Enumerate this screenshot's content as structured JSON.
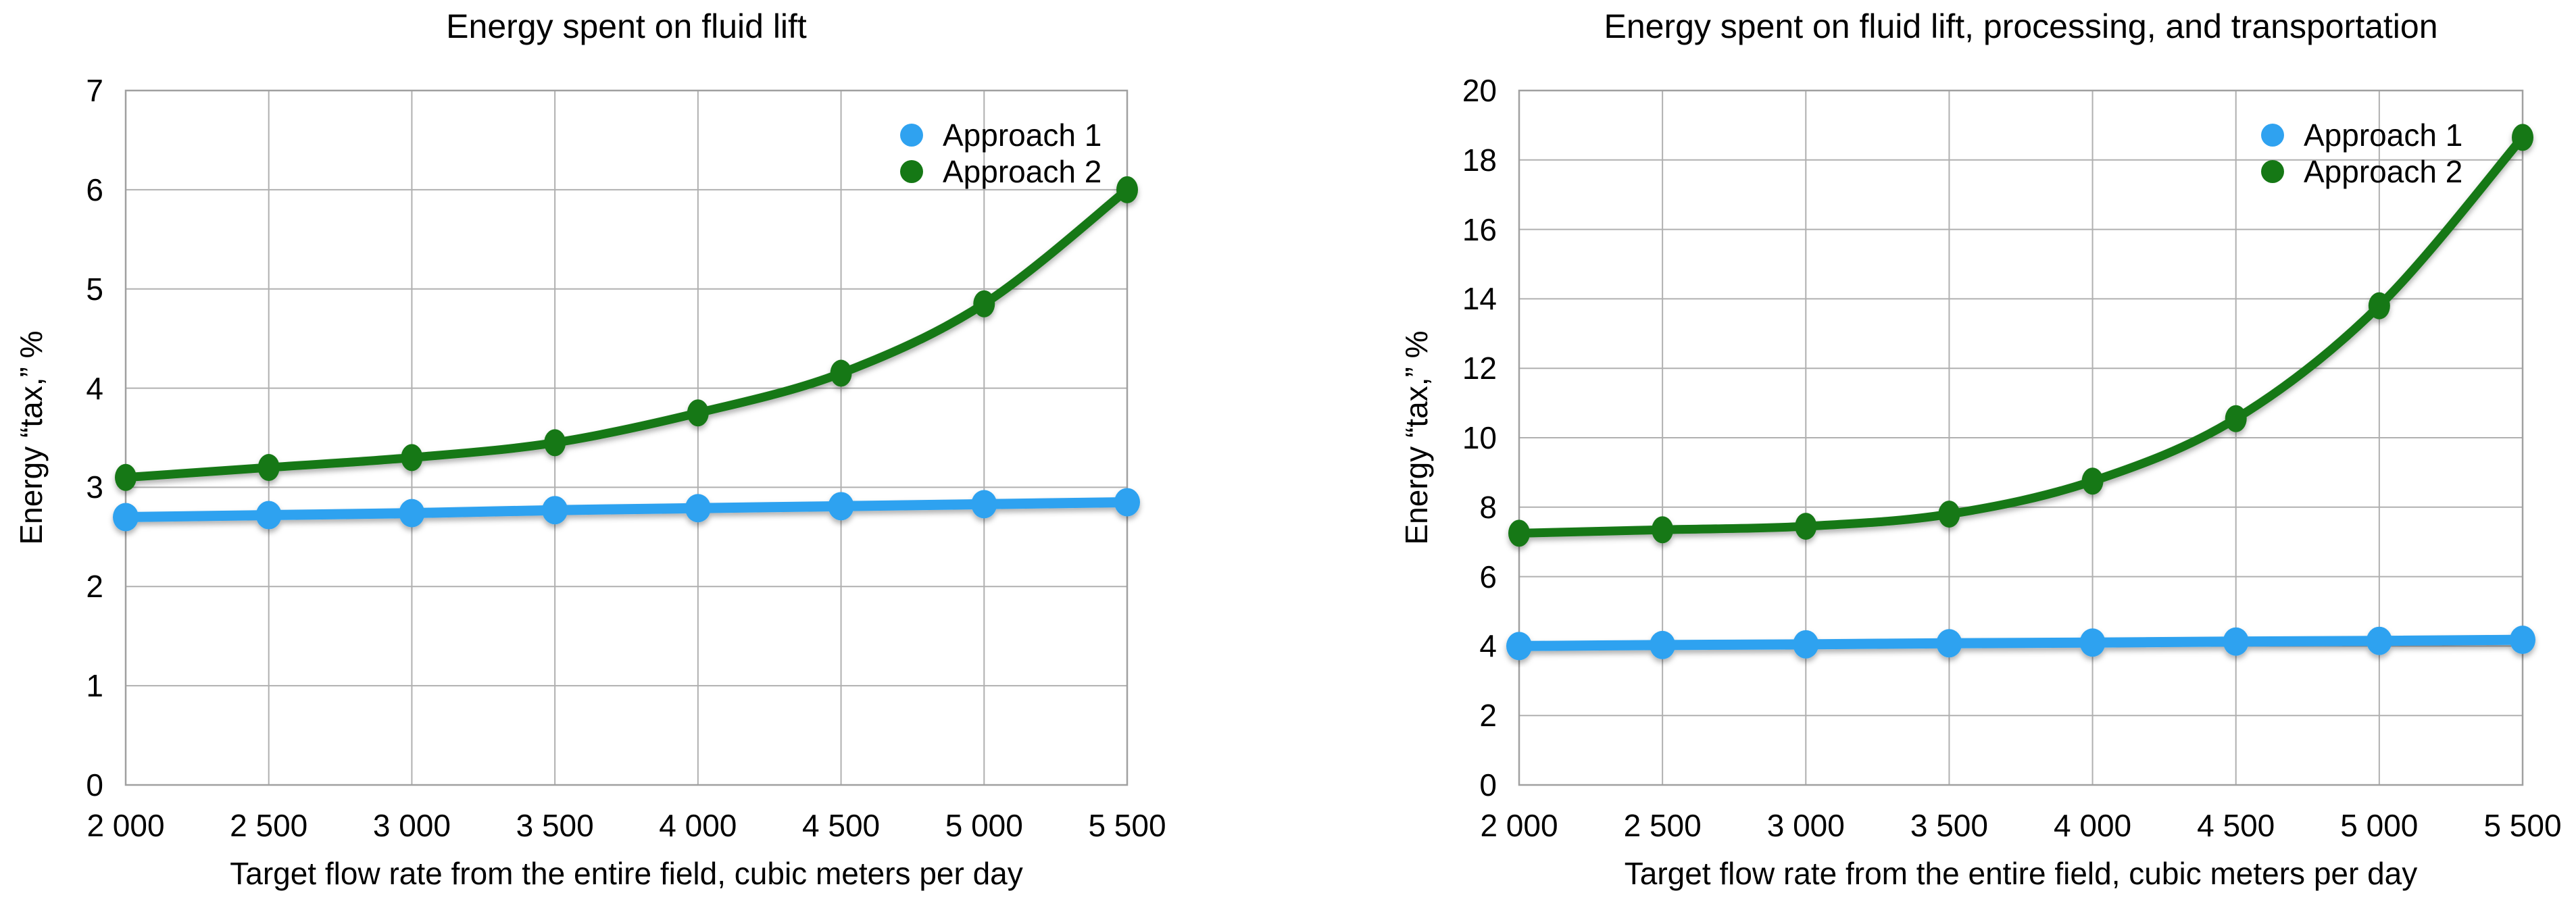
{
  "page": {
    "background_color": "#ffffff",
    "text_color": "#000000",
    "grid_color": "#B0B0B0",
    "border_color": "#A0A0A0"
  },
  "chart_data": [
    {
      "type": "line",
      "title": "Energy spent on fluid lift",
      "xlabel": "Target flow rate from the entire field, cubic meters per day",
      "ylabel": "Energy “tax,” %",
      "categories": [
        2000,
        2500,
        3000,
        3500,
        4000,
        4500,
        5000,
        5500
      ],
      "category_labels": [
        "2 000",
        "2 500",
        "3 000",
        "3 500",
        "4 000",
        "4 500",
        "5 000",
        "5 500"
      ],
      "ylim": [
        0,
        7
      ],
      "yticks": [
        0,
        1,
        2,
        3,
        4,
        5,
        6,
        7
      ],
      "grid": true,
      "legend_position": "inside-top-right",
      "legend": [
        "Approach 1",
        "Approach 2"
      ],
      "series": [
        {
          "name": "Approach 1",
          "color": "#2FA2F0",
          "values": [
            2.7,
            2.72,
            2.74,
            2.77,
            2.79,
            2.81,
            2.83,
            2.85
          ]
        },
        {
          "name": "Approach 2",
          "color": "#157815",
          "values": [
            3.1,
            3.2,
            3.3,
            3.45,
            3.75,
            4.15,
            4.85,
            6.0
          ]
        }
      ]
    },
    {
      "type": "line",
      "title": "Energy spent on fluid lift, processing, and transportation",
      "xlabel": "Target flow rate from the entire field, cubic meters per day",
      "ylabel": "Energy “tax,” %",
      "categories": [
        2000,
        2500,
        3000,
        3500,
        4000,
        4500,
        5000,
        5500
      ],
      "category_labels": [
        "2 000",
        "2 500",
        "3 000",
        "3 500",
        "4 000",
        "4 500",
        "5 000",
        "5 500"
      ],
      "ylim": [
        0,
        20
      ],
      "yticks": [
        0,
        2,
        4,
        6,
        8,
        10,
        12,
        14,
        16,
        18,
        20
      ],
      "grid": true,
      "legend_position": "inside-top-right",
      "legend": [
        "Approach 1",
        "Approach 2"
      ],
      "series": [
        {
          "name": "Approach 1",
          "color": "#2FA2F0",
          "values": [
            4.0,
            4.03,
            4.05,
            4.08,
            4.1,
            4.13,
            4.15,
            4.18
          ]
        },
        {
          "name": "Approach 2",
          "color": "#157815",
          "values": [
            7.25,
            7.35,
            7.45,
            7.8,
            8.75,
            10.55,
            13.8,
            18.65
          ]
        }
      ]
    }
  ]
}
